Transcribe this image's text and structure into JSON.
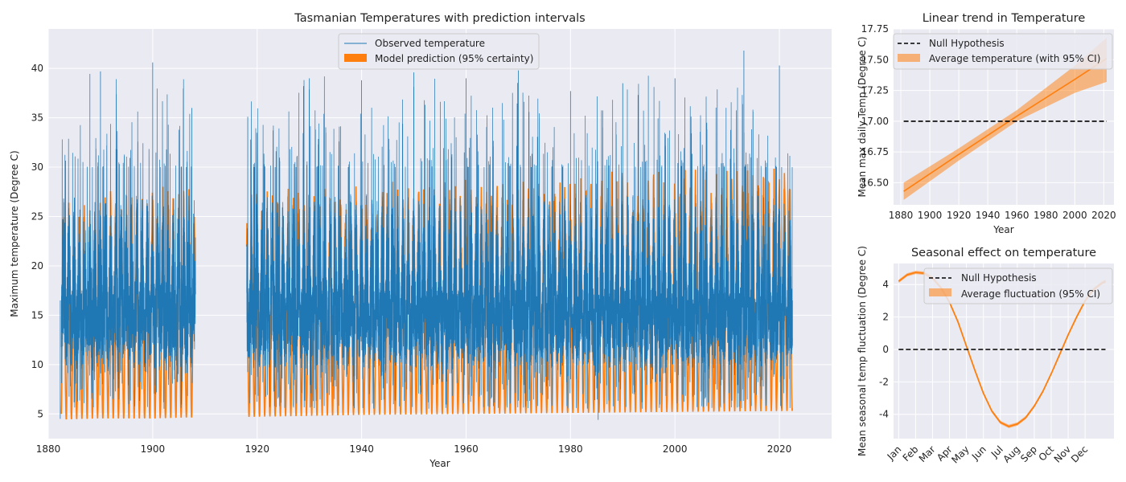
{
  "chart_data": [
    {
      "type": "line",
      "title": "Tasmanian Temperatures with prediction intervals",
      "xlabel": "Year",
      "ylabel": "Maximum temperature (Degree C)",
      "xlim": [
        1880,
        2030
      ],
      "ylim": [
        2.5,
        44
      ],
      "x_ticks": [
        "1880",
        "1900",
        "1920",
        "1940",
        "1960",
        "1980",
        "2000",
        "2020"
      ],
      "y_ticks": [
        "5",
        "10",
        "15",
        "20",
        "25",
        "30",
        "35",
        "40"
      ],
      "grid": true,
      "legend_position": "top-center",
      "data_gap": [
        1908.2,
        1918.0
      ],
      "series": [
        {
          "name": "Observed temperature",
          "color": "#1f77b4",
          "kind": "line",
          "x": [
            1882.3,
            1890,
            1900,
            1907.5,
            1918.2,
            1930,
            1940,
            1950,
            1960,
            1970,
            1980,
            1985.3,
            1990,
            2000,
            2013.2,
            2020,
            2022.5
          ],
          "y": [
            4.5,
            39.7,
            40.6,
            36.0,
            35.1,
            39.0,
            38.8,
            39.6,
            39.0,
            39.8,
            37.7,
            4.4,
            38.5,
            39.0,
            41.8,
            40.3,
            11.9
          ],
          "mean": 16.5,
          "typical_max": 38.0,
          "typical_min": 5.5
        },
        {
          "name": "Model prediction (95% certainty)",
          "color": "#ff7f0e",
          "kind": "band",
          "x": [
            1882.5,
            1890,
            1900,
            1907.5,
            1918.2,
            1930,
            1940,
            1960,
            1980,
            2000,
            2022.5
          ],
          "upper": [
            26.2,
            28.0,
            28.5,
            28.0,
            28.0,
            28.5,
            28.5,
            29.0,
            29.5,
            30.0,
            30.3
          ],
          "lower": [
            4.4,
            4.5,
            4.5,
            4.6,
            4.7,
            4.8,
            4.9,
            5.0,
            5.1,
            5.2,
            5.3
          ]
        }
      ]
    },
    {
      "type": "line",
      "title": "Linear trend in Temperature",
      "xlabel": "Year",
      "ylabel": "Mean max daily Temp (Degree C)",
      "xlim": [
        1875,
        2027
      ],
      "ylim": [
        16.32,
        17.75
      ],
      "x_ticks": [
        "1880",
        "1900",
        "1920",
        "1940",
        "1960",
        "1980",
        "2000",
        "2020"
      ],
      "y_ticks": [
        "16.50",
        "16.75",
        "17.00",
        "17.25",
        "17.50",
        "17.75"
      ],
      "grid": true,
      "legend_position": "top-left",
      "series": [
        {
          "name": "Null Hypothesis",
          "color": "#000000",
          "kind": "dashed",
          "x": [
            1882,
            2022
          ],
          "y": [
            17.0,
            17.0
          ]
        },
        {
          "name": "Average temperature (with 95% CI)",
          "color": "#ff7f0e",
          "kind": "line-band",
          "x": [
            1882,
            1920,
            1960,
            2000,
            2022
          ],
          "y": [
            16.43,
            16.73,
            17.04,
            17.34,
            17.51
          ],
          "lower": [
            16.36,
            16.68,
            17.0,
            17.23,
            17.32
          ],
          "upper": [
            16.5,
            16.78,
            17.09,
            17.45,
            17.68
          ]
        }
      ]
    },
    {
      "type": "line",
      "title": "Seasonal effect on temperature",
      "xlabel": "",
      "ylabel": "Mean seasonal temp fluctuation (Degree C)",
      "xlim": [
        -0.3,
        12.7
      ],
      "ylim": [
        -5.5,
        5.3
      ],
      "x_ticks": [
        "Jan",
        "Feb",
        "Mar",
        "Apr",
        "May",
        "Jun",
        "Jul",
        "Aug",
        "Sep",
        "Oct",
        "Nov",
        "Dec"
      ],
      "y_ticks": [
        "-4",
        "-2",
        "0",
        "2",
        "4"
      ],
      "grid": true,
      "legend_position": "top-right",
      "series": [
        {
          "name": "Null Hypothesis",
          "color": "#000000",
          "kind": "dashed",
          "x": [
            0,
            12.2
          ],
          "y": [
            0,
            0
          ]
        },
        {
          "name": "Average fluctuation (95% CI)",
          "color": "#ff7f0e",
          "kind": "line-band",
          "x": [
            0,
            0.5,
            1,
            1.5,
            2,
            2.5,
            3,
            3.5,
            4,
            4.5,
            5,
            5.5,
            6,
            6.5,
            7,
            7.5,
            8,
            8.5,
            9,
            9.5,
            10,
            10.5,
            11,
            11.5,
            12,
            12.2
          ],
          "y": [
            4.2,
            4.6,
            4.75,
            4.7,
            4.4,
            3.8,
            2.9,
            1.7,
            0.2,
            -1.3,
            -2.7,
            -3.8,
            -4.5,
            -4.75,
            -4.6,
            -4.2,
            -3.5,
            -2.6,
            -1.5,
            -0.3,
            0.9,
            2.0,
            3.0,
            3.7,
            4.1,
            4.2
          ],
          "lower": [
            4.1,
            4.5,
            4.65,
            4.6,
            4.3,
            3.7,
            2.8,
            1.6,
            0.1,
            -1.4,
            -2.8,
            -3.9,
            -4.6,
            -4.85,
            -4.7,
            -4.3,
            -3.6,
            -2.7,
            -1.6,
            -0.4,
            0.8,
            1.9,
            2.9,
            3.6,
            4.0,
            4.1
          ],
          "upper": [
            4.3,
            4.7,
            4.85,
            4.8,
            4.5,
            3.9,
            3.0,
            1.8,
            0.3,
            -1.2,
            -2.6,
            -3.7,
            -4.4,
            -4.65,
            -4.5,
            -4.1,
            -3.4,
            -2.5,
            -1.4,
            -0.2,
            1.0,
            2.1,
            3.1,
            3.8,
            4.2,
            4.3
          ]
        }
      ]
    }
  ]
}
